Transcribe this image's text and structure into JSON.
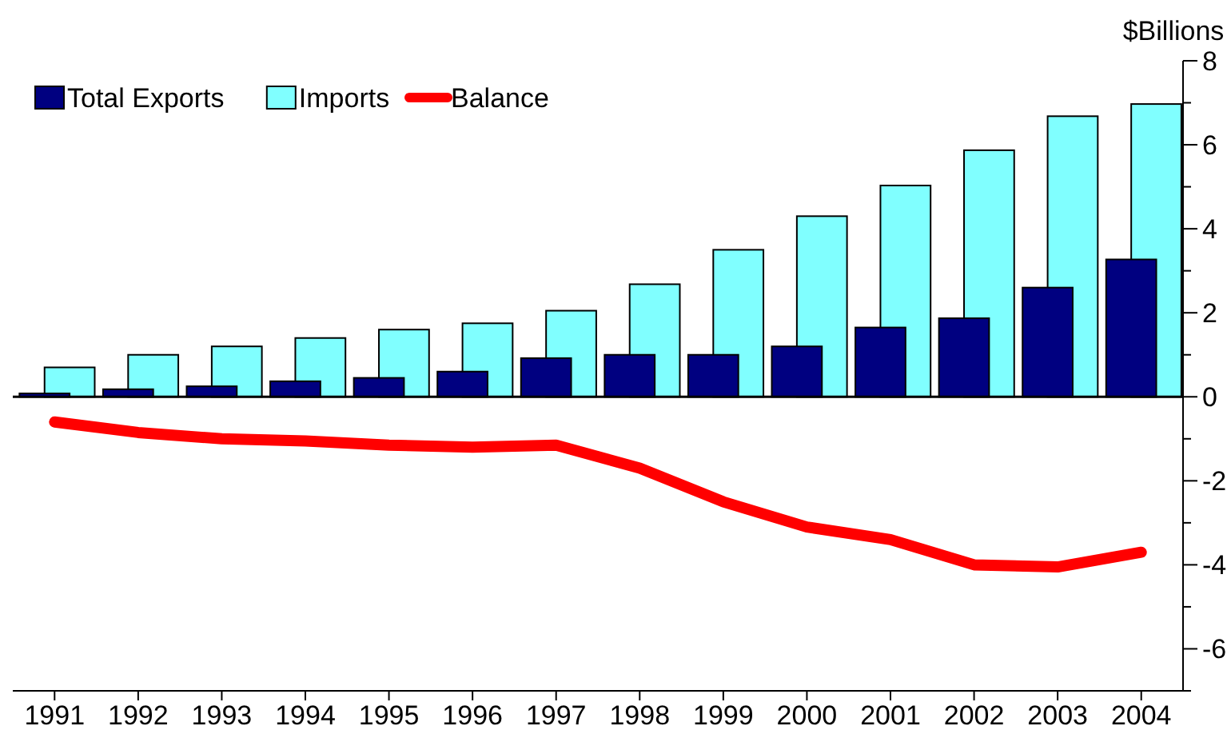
{
  "chart_data": {
    "type": "bar",
    "ylabel": "$Billions",
    "categories": [
      "1991",
      "1992",
      "1993",
      "1994",
      "1995",
      "1996",
      "1997",
      "1998",
      "1999",
      "2000",
      "2001",
      "2002",
      "2003",
      "2004"
    ],
    "series": [
      {
        "name": "Total Exports",
        "color": "#000080",
        "values": [
          0.08,
          0.18,
          0.25,
          0.37,
          0.45,
          0.6,
          0.92,
          1.0,
          1.0,
          1.2,
          1.65,
          1.87,
          2.6,
          3.27
        ]
      },
      {
        "name": "Imports",
        "color": "#80ffff",
        "values": [
          0.7,
          1.0,
          1.2,
          1.4,
          1.6,
          1.75,
          2.05,
          2.68,
          3.5,
          4.3,
          5.03,
          5.87,
          6.68,
          6.97
        ]
      },
      {
        "name": "Balance",
        "type": "line",
        "color": "#ff0000",
        "values": [
          -0.6,
          -0.85,
          -1.0,
          -1.05,
          -1.15,
          -1.2,
          -1.15,
          -1.7,
          -2.5,
          -3.1,
          -3.4,
          -4.0,
          -4.05,
          -3.7
        ]
      }
    ],
    "ylim": [
      -7,
      8
    ],
    "yticks": [
      8,
      {
        "value": 7,
        "label": null
      },
      6,
      {
        "value": 5,
        "label": null
      },
      4,
      {
        "value": 3,
        "label": null
      },
      2,
      {
        "value": 1,
        "label": null
      },
      0,
      {
        "value": -1,
        "label": null
      },
      -2,
      {
        "value": -3,
        "label": null
      },
      -4,
      {
        "value": -5,
        "label": null
      },
      -6,
      {
        "value": -7,
        "label": null
      }
    ],
    "legend": "top left"
  }
}
